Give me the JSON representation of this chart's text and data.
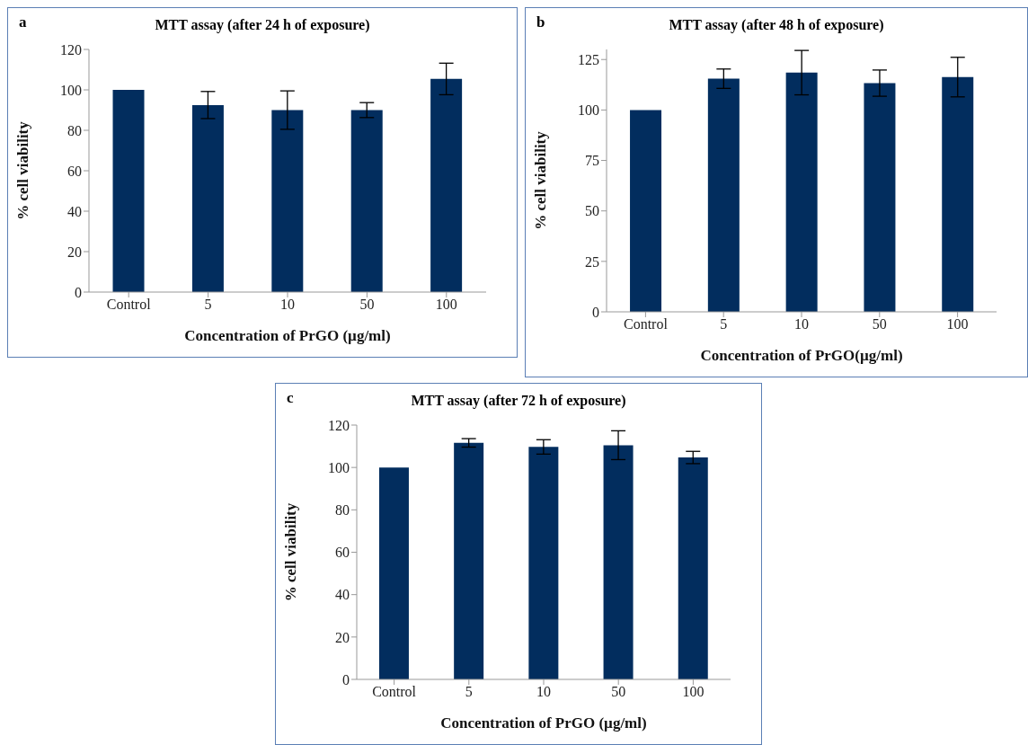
{
  "chart_data": [
    {
      "type": "bar",
      "title": "MTT assay (after 24 h of exposure)",
      "annotations": [
        "a"
      ],
      "xlabel": "Concentration of PrGO (µg/ml)",
      "ylabel": "% cell viability",
      "categories": [
        "Control",
        "5",
        "10",
        "50",
        "100"
      ],
      "values": [
        100,
        92.5,
        90,
        90,
        105.4
      ],
      "errors": [
        null,
        6.7,
        9.5,
        3.7,
        7.8
      ],
      "color": "#022d5e",
      "ylim": [
        0,
        120
      ],
      "yticks": [
        0,
        20,
        40,
        60,
        80,
        100,
        120
      ],
      "grid": false,
      "legend": false
    },
    {
      "type": "bar",
      "title": "MTT assay (after 48 h of exposure)",
      "annotations": [
        "b"
      ],
      "xlabel": "Concentration of PrGO(µg/ml)",
      "ylabel": "% cell viability",
      "categories": [
        "Control",
        "5",
        "10",
        "50",
        "100"
      ],
      "values": [
        100,
        115.5,
        118.5,
        113.3,
        116.3
      ],
      "errors": [
        null,
        4.8,
        11,
        6.5,
        9.8
      ],
      "color": "#022d5e",
      "ylim": [
        0,
        130
      ],
      "yticks": [
        0,
        25,
        50,
        75,
        100,
        125
      ],
      "grid": false,
      "legend": false
    },
    {
      "type": "bar",
      "title": "MTT assay (after 72 h of exposure)",
      "annotations": [
        "c"
      ],
      "xlabel": "Concentration of PrGO (µg/ml)",
      "ylabel": "% cell viability",
      "categories": [
        "Control",
        "5",
        "10",
        "50",
        "100"
      ],
      "values": [
        100,
        111.6,
        109.7,
        110.5,
        104.7
      ],
      "errors": [
        null,
        2,
        3.4,
        6.8,
        2.9
      ],
      "color": "#022d5e",
      "ylim": [
        0,
        120
      ],
      "yticks": [
        0,
        20,
        40,
        60,
        80,
        100,
        120
      ],
      "grid": false,
      "legend": false
    }
  ]
}
